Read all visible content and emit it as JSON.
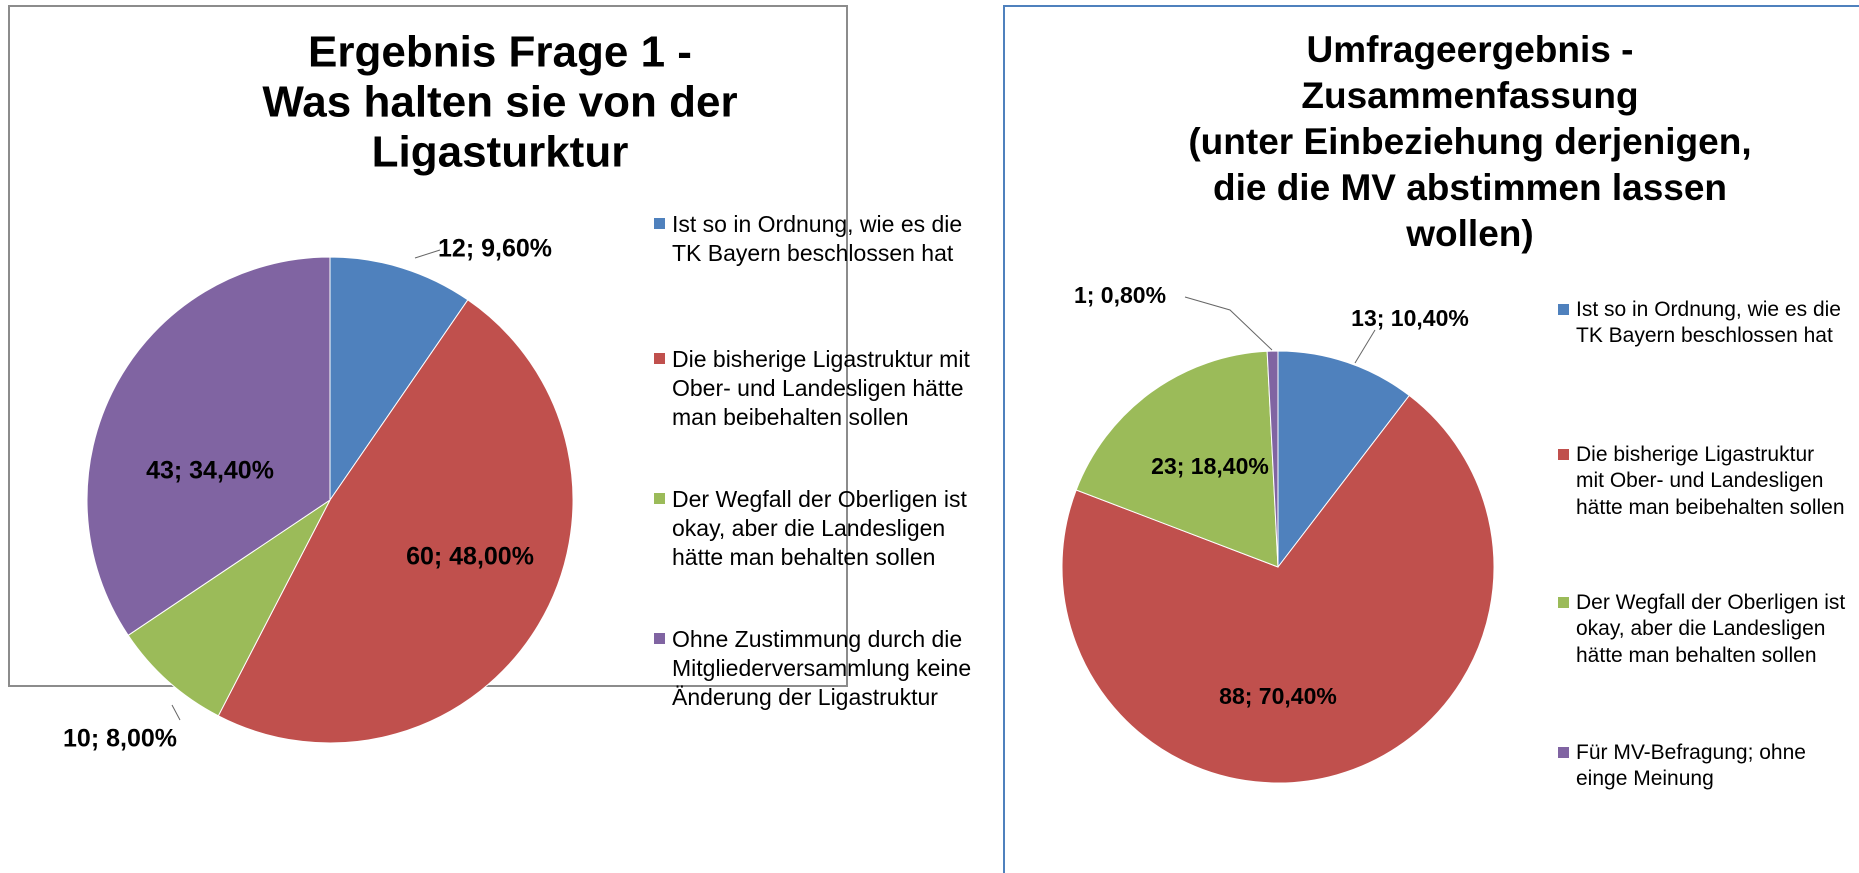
{
  "chart_data": [
    {
      "type": "pie",
      "title": [
        "Ergebnis Frage 1 -",
        "Was halten sie von der",
        "Ligasturktur"
      ],
      "categories": [
        "Ist so in Ordnung, wie es die TK Bayern beschlossen hat",
        "Die bisherige Ligastruktur mit Ober- und Landesligen hätte man beibehalten sollen",
        "Der Wegfall der Oberligen ist okay, aber die Landesligen hätte man behalten sollen",
        "Ohne Zustimmung durch die Mitgliederversammlung keine Änderung der Ligastruktur"
      ],
      "values": [
        12,
        60,
        10,
        43
      ],
      "value_labels": [
        "12; 9,60%",
        "60; 48,00%",
        "10; 8,00%",
        "43; 34,40%"
      ],
      "colors": [
        "#4f81bd",
        "#c0504d",
        "#9bbb59",
        "#8064a2"
      ],
      "legend": "right"
    },
    {
      "type": "pie",
      "title": [
        "Umfrageergebnis  -",
        "Zusammenfassung",
        "(unter Einbeziehung derjenigen,",
        "die die MV abstimmen  lassen",
        "wollen)"
      ],
      "categories": [
        "Ist so in Ordnung, wie es die TK Bayern beschlossen hat",
        "Die bisherige Ligastruktur mit Ober- und Landesligen hätte man beibehalten sollen",
        "Der Wegfall der Oberligen ist okay, aber die Landesligen hätte man behalten sollen",
        "Für MV-Befragung; ohne einge Meinung"
      ],
      "values": [
        13,
        88,
        23,
        1
      ],
      "value_labels": [
        "13; 10,40%",
        "88; 70,40%",
        "23; 18,40%",
        "1; 0,80%"
      ],
      "colors": [
        "#4f81bd",
        "#c0504d",
        "#9bbb59",
        "#8064a2"
      ],
      "legend": "right"
    }
  ]
}
